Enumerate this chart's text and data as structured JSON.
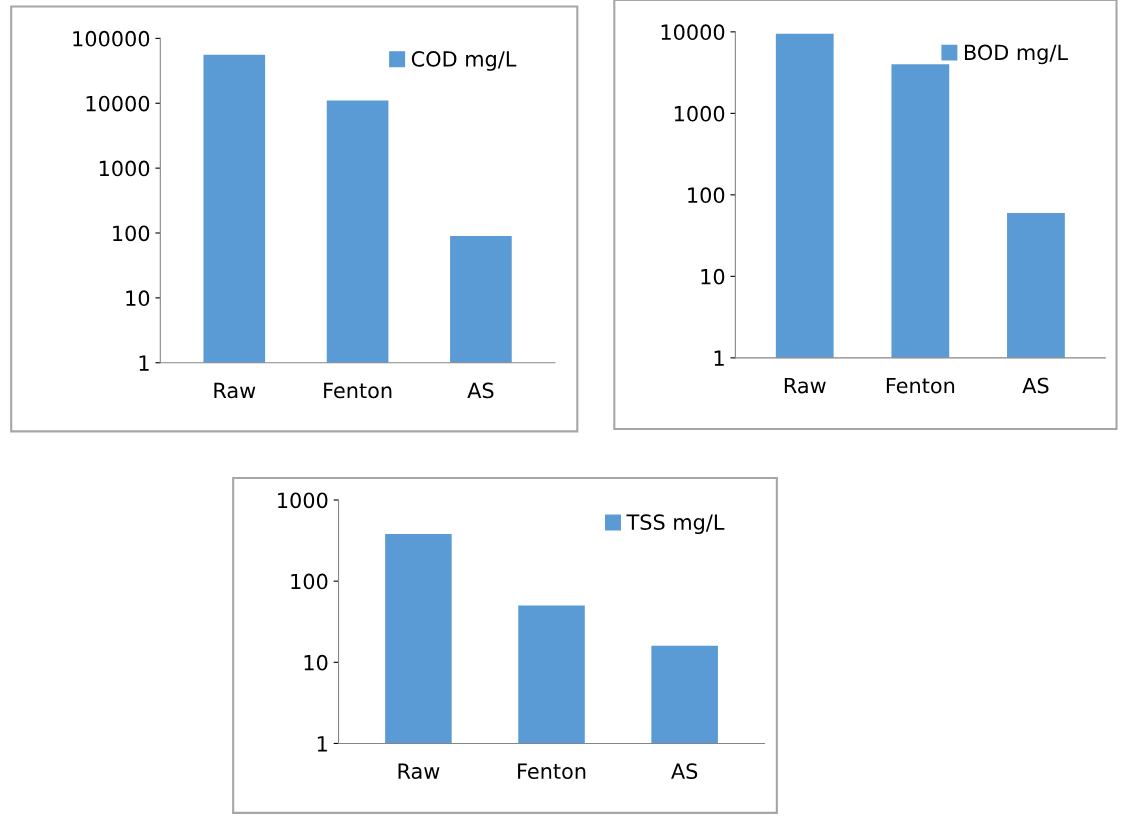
{
  "chart_data": [
    {
      "type": "bar",
      "categories": [
        "Raw",
        "Fenton",
        "AS"
      ],
      "series": [
        {
          "name": "COD mg/L",
          "color": "#5b9bd5",
          "values": [
            56000,
            11000,
            90
          ]
        }
      ],
      "log": "y",
      "ylim": [
        1,
        100000
      ],
      "yticks": [
        1,
        10,
        100,
        1000,
        10000,
        100000
      ],
      "grid": false,
      "legend": "top right"
    },
    {
      "type": "bar",
      "categories": [
        "Raw",
        "Fenton",
        "AS"
      ],
      "series": [
        {
          "name": "BOD mg/L",
          "color": "#5b9bd5",
          "values": [
            9500,
            4000,
            60
          ]
        }
      ],
      "log": "y",
      "ylim": [
        1,
        10000
      ],
      "yticks": [
        1,
        10,
        100,
        1000,
        10000
      ],
      "grid": false,
      "legend": "top right"
    },
    {
      "type": "bar",
      "categories": [
        "Raw",
        "Fenton",
        "AS"
      ],
      "series": [
        {
          "name": "TSS mg/L",
          "color": "#5b9bd5",
          "values": [
            380,
            50,
            16
          ]
        }
      ],
      "log": "y",
      "ylim": [
        1,
        1000
      ],
      "yticks": [
        1,
        10,
        100,
        1000
      ],
      "grid": false,
      "legend": "top right"
    }
  ]
}
